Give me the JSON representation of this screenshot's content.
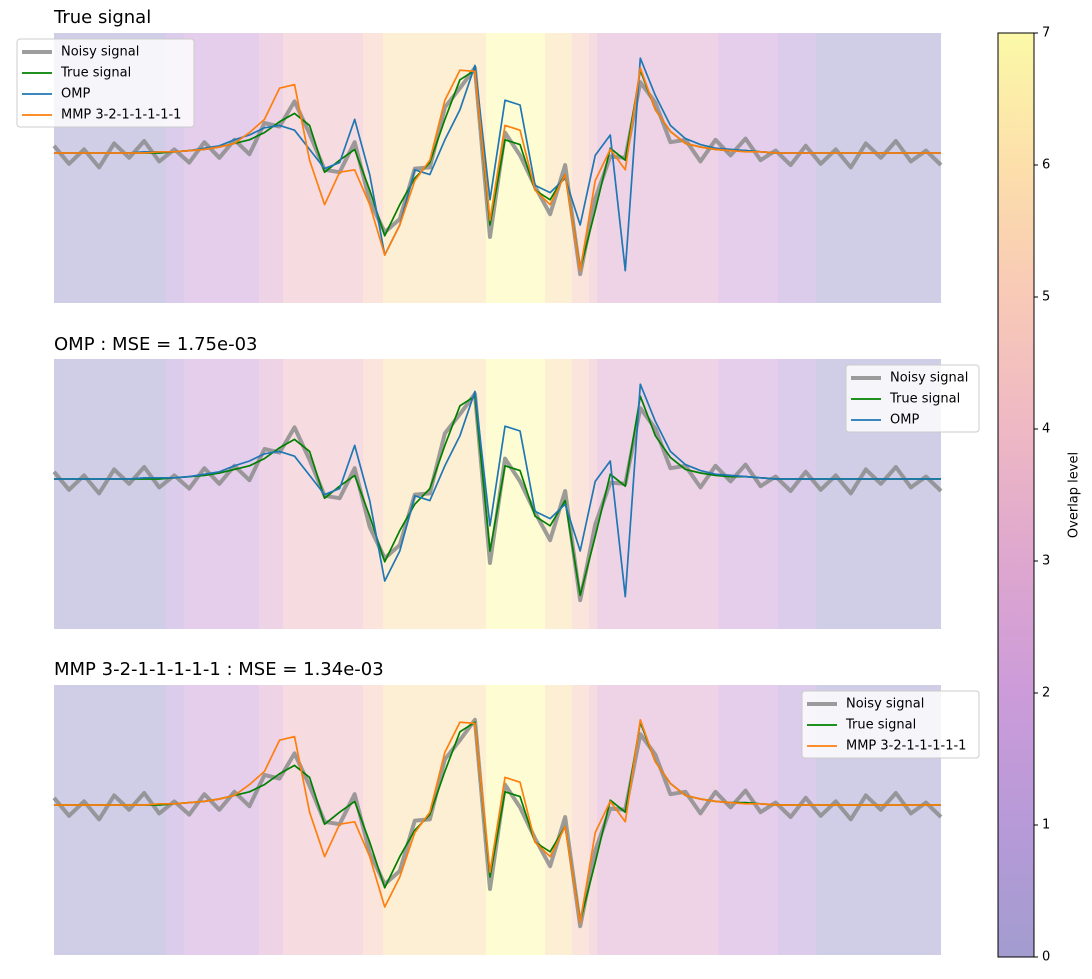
{
  "chart_data": [
    {
      "type": "line",
      "title": "True signal",
      "xlim": [
        0,
        59
      ],
      "ylim": [
        -1.25,
        1.0
      ],
      "legend": "upper left",
      "series": [
        {
          "name": "Noisy signal",
          "color": "#8c8c8c",
          "linewidth": 4,
          "values": [
            0.06,
            -0.09,
            0.03,
            -0.12,
            0.08,
            -0.04,
            0.1,
            -0.07,
            0.03,
            -0.08,
            0.09,
            -0.04,
            0.11,
            -0.01,
            0.25,
            0.22,
            0.43,
            0.16,
            -0.14,
            -0.16,
            0.09,
            -0.4,
            -0.66,
            -0.55,
            -0.13,
            -0.12,
            0.38,
            0.54,
            0.71,
            -0.7,
            0.17,
            -0.02,
            -0.28,
            -0.51,
            -0.1,
            -1.01,
            -0.38,
            -0.03,
            -0.04,
            0.59,
            0.42,
            0.09,
            0.11,
            -0.07,
            0.11,
            -0.02,
            0.12,
            -0.06,
            0.02,
            -0.1,
            0.06,
            -0.09,
            0.03,
            -0.12,
            0.08,
            -0.04,
            0.1,
            -0.07,
            0.02,
            -0.1
          ]
        },
        {
          "name": "True signal",
          "color": "#008000",
          "linewidth": 1.7,
          "values": [
            0,
            0,
            0,
            0,
            0,
            0,
            0,
            0,
            0.01,
            0.02,
            0.03,
            0.05,
            0.08,
            0.11,
            0.17,
            0.26,
            0.33,
            0.23,
            -0.16,
            -0.06,
            0.03,
            -0.31,
            -0.69,
            -0.43,
            -0.21,
            -0.08,
            0.28,
            0.61,
            0.69,
            -0.6,
            0.11,
            0.07,
            -0.31,
            -0.39,
            -0.18,
            -0.97,
            -0.48,
            0.04,
            -0.06,
            0.69,
            0.36,
            0.18,
            0.08,
            0.05,
            0.03,
            0.02,
            0.02,
            0.01,
            0,
            0,
            0,
            0,
            0,
            0,
            0,
            0,
            0,
            0,
            0,
            0
          ]
        },
        {
          "name": "OMP",
          "color": "#1f77b4",
          "linewidth": 1.7,
          "values": [
            0,
            0,
            0,
            0,
            0,
            0,
            0.01,
            0.01,
            0.01,
            0.02,
            0.04,
            0.06,
            0.11,
            0.15,
            0.21,
            0.23,
            0.19,
            0.03,
            -0.13,
            -0.08,
            0.28,
            -0.18,
            -0.85,
            -0.6,
            -0.14,
            -0.18,
            0.11,
            0.36,
            0.73,
            -0.39,
            0.44,
            0.4,
            -0.27,
            -0.33,
            -0.21,
            -0.6,
            -0.02,
            0.15,
            -0.98,
            0.79,
            0.48,
            0.23,
            0.12,
            0.07,
            0.04,
            0.03,
            0.02,
            0.01,
            0,
            0,
            0,
            0,
            0,
            0,
            0,
            0,
            0,
            0,
            0,
            0
          ]
        },
        {
          "name": "MMP 3-2-1-1-1-1-1",
          "color": "#ff7f0e",
          "linewidth": 1.7,
          "values": [
            0,
            0,
            0,
            0,
            0,
            0,
            0,
            0.01,
            0.01,
            0.02,
            0.03,
            0.05,
            0.08,
            0.17,
            0.28,
            0.54,
            0.57,
            -0.06,
            -0.43,
            -0.16,
            -0.14,
            -0.43,
            -0.85,
            -0.6,
            -0.23,
            -0.06,
            0.44,
            0.69,
            0.68,
            -0.56,
            0.23,
            0.19,
            -0.31,
            -0.43,
            -0.18,
            -0.98,
            -0.23,
            0.03,
            -0.14,
            0.71,
            0.36,
            0.18,
            0.08,
            0.05,
            0.03,
            0.02,
            0.01,
            0.01,
            0,
            0,
            0,
            0,
            0,
            0,
            0,
            0,
            0,
            0,
            0,
            0
          ]
        }
      ]
    },
    {
      "type": "line",
      "title": "OMP : MSE = 1.75e-03",
      "xlim": [
        0,
        59
      ],
      "ylim": [
        -1.25,
        1.0
      ],
      "legend": "upper right",
      "series": [
        {
          "name": "Noisy signal",
          "color": "#8c8c8c",
          "linewidth": 4,
          "values": [
            0.06,
            -0.09,
            0.03,
            -0.12,
            0.08,
            -0.04,
            0.1,
            -0.07,
            0.03,
            -0.08,
            0.09,
            -0.04,
            0.11,
            -0.01,
            0.25,
            0.22,
            0.43,
            0.16,
            -0.14,
            -0.16,
            0.09,
            -0.4,
            -0.66,
            -0.55,
            -0.13,
            -0.12,
            0.38,
            0.54,
            0.71,
            -0.7,
            0.17,
            -0.02,
            -0.28,
            -0.51,
            -0.1,
            -1.01,
            -0.38,
            -0.03,
            -0.04,
            0.59,
            0.42,
            0.09,
            0.11,
            -0.07,
            0.11,
            -0.02,
            0.12,
            -0.06,
            0.02,
            -0.1,
            0.06,
            -0.09,
            0.03,
            -0.12,
            0.08,
            -0.04,
            0.1,
            -0.07,
            0.02,
            -0.1
          ]
        },
        {
          "name": "True signal",
          "color": "#008000",
          "linewidth": 1.7,
          "values": [
            0,
            0,
            0,
            0,
            0,
            0,
            0,
            0,
            0.01,
            0.02,
            0.03,
            0.05,
            0.08,
            0.11,
            0.17,
            0.26,
            0.33,
            0.23,
            -0.16,
            -0.06,
            0.03,
            -0.31,
            -0.69,
            -0.43,
            -0.21,
            -0.08,
            0.28,
            0.61,
            0.69,
            -0.6,
            0.11,
            0.07,
            -0.31,
            -0.39,
            -0.18,
            -0.97,
            -0.48,
            0.04,
            -0.06,
            0.69,
            0.36,
            0.18,
            0.08,
            0.05,
            0.03,
            0.02,
            0.02,
            0.01,
            0,
            0,
            0,
            0,
            0,
            0,
            0,
            0,
            0,
            0,
            0,
            0
          ]
        },
        {
          "name": "OMP",
          "color": "#1f77b4",
          "linewidth": 1.7,
          "values": [
            0,
            0,
            0,
            0,
            0,
            0,
            0.01,
            0.01,
            0.01,
            0.02,
            0.04,
            0.06,
            0.11,
            0.15,
            0.21,
            0.23,
            0.19,
            0.03,
            -0.13,
            -0.08,
            0.28,
            -0.18,
            -0.85,
            -0.6,
            -0.14,
            -0.18,
            0.11,
            0.36,
            0.73,
            -0.39,
            0.44,
            0.4,
            -0.27,
            -0.33,
            -0.21,
            -0.6,
            -0.02,
            0.15,
            -0.98,
            0.79,
            0.48,
            0.23,
            0.12,
            0.07,
            0.04,
            0.03,
            0.02,
            0.01,
            0,
            0,
            0,
            0,
            0,
            0,
            0,
            0,
            0,
            0,
            0,
            0
          ]
        }
      ]
    },
    {
      "type": "line",
      "title": "MMP 3-2-1-1-1-1-1 : MSE = 1.34e-03",
      "xlim": [
        0,
        59
      ],
      "ylim": [
        -1.25,
        1.0
      ],
      "legend": "upper right",
      "series": [
        {
          "name": "Noisy signal",
          "color": "#8c8c8c",
          "linewidth": 4,
          "values": [
            0.06,
            -0.09,
            0.03,
            -0.12,
            0.08,
            -0.04,
            0.1,
            -0.07,
            0.03,
            -0.08,
            0.09,
            -0.04,
            0.11,
            -0.01,
            0.25,
            0.22,
            0.43,
            0.16,
            -0.14,
            -0.16,
            0.09,
            -0.4,
            -0.66,
            -0.55,
            -0.13,
            -0.12,
            0.38,
            0.54,
            0.71,
            -0.7,
            0.17,
            -0.02,
            -0.28,
            -0.51,
            -0.1,
            -1.01,
            -0.38,
            -0.03,
            -0.04,
            0.59,
            0.42,
            0.09,
            0.11,
            -0.07,
            0.11,
            -0.02,
            0.12,
            -0.06,
            0.02,
            -0.1,
            0.06,
            -0.09,
            0.03,
            -0.12,
            0.08,
            -0.04,
            0.1,
            -0.07,
            0.02,
            -0.1
          ]
        },
        {
          "name": "True signal",
          "color": "#008000",
          "linewidth": 1.7,
          "values": [
            0,
            0,
            0,
            0,
            0,
            0,
            0,
            0,
            0.01,
            0.02,
            0.03,
            0.05,
            0.08,
            0.11,
            0.17,
            0.26,
            0.33,
            0.23,
            -0.16,
            -0.06,
            0.03,
            -0.31,
            -0.69,
            -0.43,
            -0.21,
            -0.08,
            0.28,
            0.61,
            0.69,
            -0.6,
            0.11,
            0.07,
            -0.31,
            -0.39,
            -0.18,
            -0.97,
            -0.48,
            0.04,
            -0.06,
            0.69,
            0.36,
            0.18,
            0.08,
            0.05,
            0.03,
            0.02,
            0.02,
            0.01,
            0,
            0,
            0,
            0,
            0,
            0,
            0,
            0,
            0,
            0,
            0,
            0
          ]
        },
        {
          "name": "MMP 3-2-1-1-1-1-1",
          "color": "#ff7f0e",
          "linewidth": 1.7,
          "values": [
            0,
            0,
            0,
            0,
            0,
            0,
            0,
            0.01,
            0.01,
            0.02,
            0.03,
            0.05,
            0.08,
            0.17,
            0.28,
            0.54,
            0.57,
            -0.06,
            -0.43,
            -0.16,
            -0.14,
            -0.43,
            -0.85,
            -0.6,
            -0.23,
            -0.06,
            0.44,
            0.69,
            0.68,
            -0.56,
            0.23,
            0.19,
            -0.31,
            -0.43,
            -0.18,
            -0.98,
            -0.23,
            0.03,
            -0.14,
            0.71,
            0.36,
            0.18,
            0.08,
            0.05,
            0.03,
            0.02,
            0.01,
            0.01,
            0,
            0,
            0,
            0,
            0,
            0,
            0,
            0,
            0,
            0,
            0,
            0
          ]
        }
      ]
    }
  ],
  "overlap": {
    "label": "Overlap level",
    "lim": [
      0,
      7
    ],
    "ticks": [
      0,
      1,
      2,
      3,
      4,
      5,
      6,
      7
    ],
    "colors": [
      "#a29ccf",
      "#b79ad8",
      "#cc9bd9",
      "#dea7cf",
      "#eeb8c4",
      "#f8c9b7",
      "#fcdfaa",
      "#fbf9a8"
    ],
    "bands": [
      {
        "start": 0,
        "end": 7.45,
        "level": 0
      },
      {
        "start": 7.45,
        "end": 8.65,
        "level": 1
      },
      {
        "start": 8.65,
        "end": 13.64,
        "level": 2
      },
      {
        "start": 13.64,
        "end": 15.23,
        "level": 3
      },
      {
        "start": 15.23,
        "end": 20.55,
        "level": 4
      },
      {
        "start": 20.55,
        "end": 21.88,
        "level": 5
      },
      {
        "start": 21.88,
        "end": 28.73,
        "level": 6
      },
      {
        "start": 28.73,
        "end": 32.66,
        "level": 7
      },
      {
        "start": 32.66,
        "end": 34.45,
        "level": 6
      },
      {
        "start": 34.45,
        "end": 35.59,
        "level": 5
      },
      {
        "start": 35.59,
        "end": 36.12,
        "level": 4
      },
      {
        "start": 36.12,
        "end": 44.17,
        "level": 3
      },
      {
        "start": 44.17,
        "end": 48.16,
        "level": 2
      },
      {
        "start": 48.16,
        "end": 50.69,
        "level": 1
      },
      {
        "start": 50.69,
        "end": 59,
        "level": 0
      }
    ]
  }
}
